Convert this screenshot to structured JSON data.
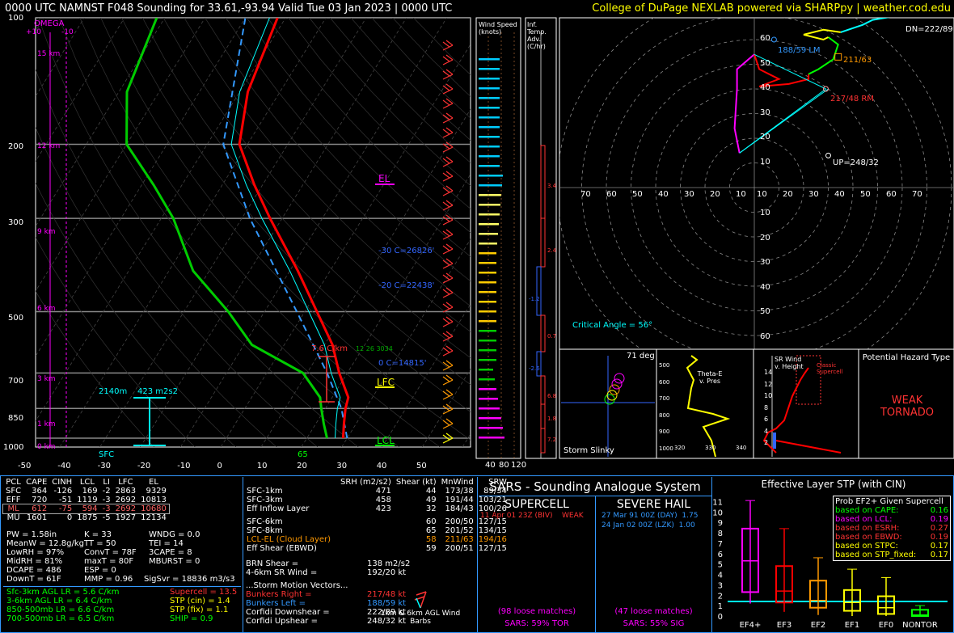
{
  "header": {
    "title": "0000 UTC NAMNST F048 Sounding for 33.61,-93.94 Valid  Tue 03 Jan 2023 | 0000 UTC",
    "credit": "College of DuPage NEXLAB powered via SHARPpy | weather.cod.edu"
  },
  "skewt": {
    "pressure_labels": [
      "100",
      "200",
      "300",
      "500",
      "700",
      "850",
      "1000"
    ],
    "temp_labels": [
      "-50",
      "-40",
      "-30",
      "-20",
      "-10",
      "0",
      "10",
      "20",
      "30",
      "40",
      "50"
    ],
    "height_labels": [
      "15 km",
      "12 km",
      "9 km",
      "6 km",
      "3 km",
      "1 km",
      "0 km"
    ],
    "omega": "OMEGA",
    "omega_ticks": [
      "+10",
      "-10"
    ],
    "el": "EL",
    "lfc": "LFC",
    "lcl": "LCL",
    "minus30": "-30 C=26826'",
    "minus20": "-20 C=22438'",
    "zero": "0 C=14815'",
    "lapse": "7.6 C/km",
    "lapse2": "12 26 3034",
    "h_2140": "2140m",
    "srh_effective": "423 m2s2",
    "sfc": "SFC",
    "sfc_temp": "65"
  },
  "wind_speed": {
    "title": "Wind Speed (knots)",
    "ticks": [
      "40",
      "80",
      "120"
    ]
  },
  "temp_adv": {
    "title": "Inf. Temp. Adv. (C/hr)",
    "values": [
      "3.4",
      "2.4",
      "-1.2",
      "0.7",
      "-2.6",
      "6.8",
      "1.8",
      "7.2"
    ]
  },
  "hodograph": {
    "ring_labels_y": [
      "60",
      "50",
      "40",
      "30",
      "20",
      "10"
    ],
    "ring_labels_x": [
      "70",
      "60",
      "50",
      "40",
      "30",
      "20",
      "10",
      "10",
      "20",
      "30",
      "40",
      "50",
      "60",
      "70"
    ],
    "ring_labels_y_bottom": [
      "10",
      "20",
      "30",
      "40",
      "50",
      "60"
    ],
    "dn": "DN=222/89",
    "lm": "188/59 LM",
    "c211": "211/63",
    "rm": "217/48 RM",
    "up": "UP=248/32",
    "critical": "Critical Angle = 56°"
  },
  "storm_slinky": {
    "title": "Storm Slinky",
    "deg": "71 deg"
  },
  "thetae": {
    "title": "Theta-E v. Pres",
    "p_labels": [
      "500",
      "600",
      "700",
      "800",
      "900",
      "1000"
    ],
    "x_labels": [
      "320",
      "330",
      "340"
    ]
  },
  "srwind": {
    "title": "SR Wind v. Height",
    "classic": "Classic Supercell",
    "y_labels": [
      "14",
      "12",
      "10",
      "8",
      "6",
      "4",
      "2"
    ]
  },
  "hazard": {
    "title": "Potential Hazard Type",
    "type": "WEAK TORNADO"
  },
  "parcels": {
    "headers": [
      "PCL",
      "CAPE",
      "CINH",
      "LCL",
      "LI",
      "LFC",
      "EL"
    ],
    "rows": [
      [
        "SFC",
        "364",
        "-126",
        "169",
        "-2",
        "2863",
        "9329"
      ],
      [
        "EFF",
        "720",
        "-51",
        "1119",
        "-3",
        "2692",
        "10813"
      ],
      [
        "ML",
        "612",
        "-75",
        "594",
        "-3",
        "2692",
        "10680"
      ],
      [
        "MU",
        "1601",
        "0",
        "1875",
        "-5",
        "1927",
        "12134"
      ]
    ]
  },
  "indices": {
    "col1": [
      "PW = 1.58in",
      "MeanW = 12.8g/kg",
      "LowRH = 97%",
      "MidRH = 81%",
      "DCAPE = 486",
      "DownT = 61F"
    ],
    "col2": [
      "K = 33",
      "TT = 50",
      "ConvT = 78F",
      "maxT = 80F",
      "ESP = 0",
      "MMP = 0.96"
    ],
    "col3": [
      "WNDG = 0.0",
      "TEI = 14",
      "3CAPE = 8",
      "MBURST = 0",
      "",
      ""
    ],
    "sigsvr": "SigSvr = 18836 m3/s3"
  },
  "lapse": [
    "Sfc-3km AGL LR = 5.6 C/km",
    "3-6km AGL LR = 6.4 C/km",
    "850-500mb LR = 6.6 C/km",
    "700-500mb LR = 6.5 C/km"
  ],
  "composite": [
    "Supercell = 13.5",
    "STP (cin) = 1.4",
    "STP (fix) = 1.1",
    "SHIP = 0.9"
  ],
  "kinematics": {
    "headers": [
      "SRH (m2/s2)",
      "Shear (kt)",
      "MnWind",
      "SRW"
    ],
    "rows": [
      [
        "SFC-1km",
        "471",
        "44",
        "173/38",
        "89/34"
      ],
      [
        "SFC-3km",
        "458",
        "49",
        "191/44",
        "103/21"
      ],
      [
        "Eff Inflow Layer",
        "423",
        "32",
        "184/43",
        "100/26"
      ],
      [
        "",
        "",
        "",
        "",
        ""
      ],
      [
        "SFC-6km",
        "",
        "60",
        "200/50",
        "127/15"
      ],
      [
        "SFC-8km",
        "",
        "65",
        "201/52",
        "134/15"
      ],
      [
        "LCL-EL (Cloud Layer)",
        "",
        "58",
        "211/63",
        "194/16"
      ],
      [
        "Eff Shear (EBWD)",
        "",
        "59",
        "200/51",
        "127/15"
      ]
    ],
    "brn": [
      "BRN Shear =",
      "138 m2/s2"
    ],
    "srwind46": [
      "4-6km SR Wind =",
      "192/20 kt"
    ],
    "storm_title": "...Storm Motion Vectors...",
    "bunkers_r": [
      "Bunkers Right =",
      "217/48 kt"
    ],
    "bunkers_l": [
      "Bunkers Left =",
      "188/59 kt"
    ],
    "corfidi_dn": [
      "Corfidi Downshear =",
      "222/89 kt"
    ],
    "corfidi_up": [
      "Corfidi Upshear =",
      "248/32 kt"
    ],
    "barb_caption": "1km & 6km AGL Wind Barbs"
  },
  "sars": {
    "title": "SARS - Sounding Analogue System",
    "supercell": "SUPERCELL",
    "hail": "SEVERE HAIL",
    "sup_match": "11 Apr 01 23Z (BIV)    WEAK",
    "hail_match1": "27 Mar 91 00Z (DAY)  1.75",
    "hail_match2": "24 Jan 02 00Z (LZK)  1.00",
    "sup_loose": "(98 loose matches)",
    "sup_tor": "SARS: 59% TOR",
    "hail_loose": "(47 loose matches)",
    "hail_sig": "SARS: 55% SIG"
  },
  "stp": {
    "title": "Effective Layer STP (with CIN)",
    "y_labels": [
      "11",
      "10",
      "9",
      "8",
      "7",
      "6",
      "5",
      "4",
      "3",
      "2",
      "1",
      "0"
    ],
    "categories": [
      "EF4+",
      "EF3",
      "EF2",
      "EF1",
      "EF0",
      "NONTOR"
    ],
    "legend_title": "Prob EF2+ Given Supercell",
    "legend": [
      [
        "based on CAPE:",
        "0.16"
      ],
      [
        "based on LCL:",
        "0.19"
      ],
      [
        "based on ESRH:",
        "0.27"
      ],
      [
        "based on EBWD:",
        "0.19"
      ],
      [
        "based on STPC:",
        "0.17"
      ],
      [
        "based on STP_fixed:",
        "0.17"
      ]
    ]
  },
  "chart_data": {
    "type": "line",
    "title": "0000 UTC NAMNST F048 Sounding for 33.61,-93.94 Valid  Tue 03 Jan 2023 | 0000 UTC",
    "xlabel": "",
    "ylabel": "",
    "xlim": [
      -50,
      50
    ],
    "ylim": [
      1000,
      100
    ],
    "y_scale": "log",
    "series": [
      {
        "name": "",
        "values": [
          [
            1000,
            19
          ],
          [
            925,
            17
          ],
          [
            850,
            15
          ],
          [
            800,
            14
          ],
          [
            700,
            8
          ],
          [
            600,
            2
          ],
          [
            500,
            -7
          ],
          [
            400,
            -18
          ],
          [
            300,
            -33
          ],
          [
            250,
            -42
          ],
          [
            200,
            -52
          ],
          [
            150,
            -58
          ],
          [
            100,
            -62
          ]
        ]
      },
      {
        "name": "",
        "values": [
          [
            1000,
            18
          ],
          [
            925,
            15
          ],
          [
            850,
            12
          ],
          [
            800,
            10
          ],
          [
            700,
            2
          ],
          [
            600,
            -6
          ],
          [
            500,
            -17
          ],
          [
            400,
            -32
          ],
          [
            300,
            -45
          ],
          [
            250,
            -55
          ],
          [
            200,
            -68
          ],
          [
            150,
            -76
          ],
          [
            100,
            -80
          ]
        ]
      }
    ],
    "stp_boxes": [
      {
        "category": "EF4+",
        "whisker_low": 1.2,
        "q1": 2.3,
        "median": 5.3,
        "q3": 8.4,
        "whisker_high": 11.1
      },
      {
        "category": "EF3",
        "whisker_low": 0.4,
        "q1": 1.3,
        "median": 2.4,
        "q3": 4.8,
        "whisker_high": 8.4
      },
      {
        "category": "EF2",
        "whisker_low": 0.1,
        "q1": 0.8,
        "median": 1.5,
        "q3": 3.4,
        "whisker_high": 5.6
      },
      {
        "category": "EF1",
        "whisker_low": 0.0,
        "q1": 0.5,
        "median": 1.3,
        "q3": 2.5,
        "whisker_high": 4.5
      },
      {
        "category": "EF0",
        "whisker_low": 0.0,
        "q1": 0.2,
        "median": 0.8,
        "q3": 1.9,
        "whisker_high": 3.7
      },
      {
        "category": "NONTOR",
        "whisker_low": 0.0,
        "q1": 0.0,
        "median": 0.1,
        "q3": 0.6,
        "whisker_high": 1.0
      }
    ],
    "stp_value": 1.4
  }
}
